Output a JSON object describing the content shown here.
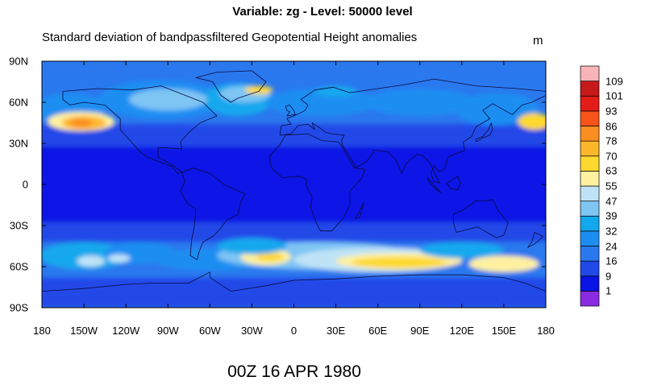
{
  "title": "Variable: zg - Level: 50000 level",
  "subtitle": "Standard deviation of bandpassfiltered Geopotential Height anomalies",
  "units": "m",
  "date": "00Z 16 APR 1980",
  "chart_data": {
    "type": "heatmap",
    "projection": "cylindrical-equidistant",
    "xlim": [
      -180,
      180
    ],
    "ylim": [
      -90,
      90
    ],
    "lat_ticks": [
      "90N",
      "60N",
      "30N",
      "0",
      "30S",
      "60S",
      "90S"
    ],
    "lon_ticks": [
      "180",
      "150W",
      "120W",
      "90W",
      "60W",
      "30W",
      "0",
      "30E",
      "60E",
      "90E",
      "120E",
      "150E",
      "180"
    ],
    "colorbar": {
      "levels": [
        "1",
        "9",
        "16",
        "24",
        "32",
        "39",
        "47",
        "55",
        "63",
        "70",
        "78",
        "86",
        "93",
        "101",
        "109"
      ],
      "colors": [
        "#8a2be2",
        "#0a14e6",
        "#2049e8",
        "#2a78ee",
        "#1c8ef2",
        "#12a8ee",
        "#7ec5f4",
        "#bfe3f6",
        "#fff1a0",
        "#fdd82e",
        "#fdb72a",
        "#fb8e21",
        "#f8541a",
        "#e31c18",
        "#c61a1a",
        "#f9b4b8"
      ]
    },
    "features": [
      {
        "name": "North Pacific maximum",
        "lon": -150,
        "lat": 45,
        "level": "78"
      },
      {
        "name": "Southern Ocean maximum",
        "lon": 75,
        "lat": -57,
        "level": "70"
      },
      {
        "name": "South Atlantic maximum",
        "lon": -20,
        "lat": -53,
        "level": "63"
      },
      {
        "name": "North Atlantic maximum",
        "lon": -25,
        "lat": 68,
        "level": "63"
      },
      {
        "name": "Western Pacific maximum",
        "lon": 172,
        "lat": 45,
        "level": "70"
      }
    ]
  }
}
